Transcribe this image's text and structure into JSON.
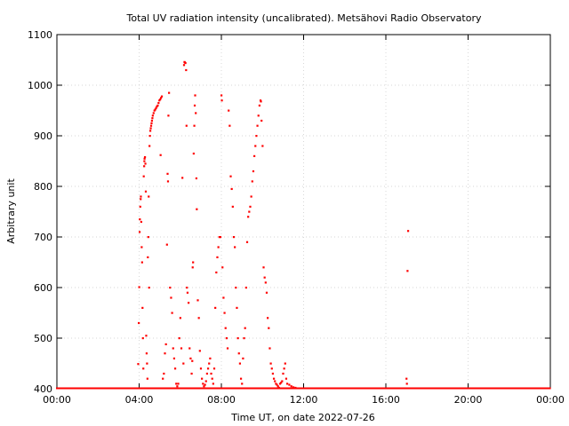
{
  "chart_data": {
    "type": "scatter",
    "title": "Total UV radiation intensity (uncalibrated). Metsähovi Radio Observatory",
    "xlabel": "Time UT, on date 2022-07-26",
    "ylabel": "Arbitrary unit",
    "xlim": [
      "00:00",
      "24:00"
    ],
    "ylim": [
      400,
      1100
    ],
    "x_ticks": [
      "00:00",
      "04:00",
      "08:00",
      "12:00",
      "16:00",
      "20:00",
      "00:00"
    ],
    "y_ticks": [
      400,
      500,
      600,
      700,
      800,
      900,
      1000,
      1100
    ],
    "grid": true,
    "series_color": "#ff0000",
    "baseline_value": 400,
    "series": [
      {
        "x_unit": "hours UT",
        "points": [
          [
            3.95,
            449
          ],
          [
            3.98,
            530
          ],
          [
            4.0,
            601
          ],
          [
            4.02,
            710
          ],
          [
            4.03,
            735
          ],
          [
            4.05,
            760
          ],
          [
            4.07,
            775
          ],
          [
            4.08,
            780
          ],
          [
            4.1,
            730
          ],
          [
            4.12,
            680
          ],
          [
            4.14,
            650
          ],
          [
            4.16,
            560
          ],
          [
            4.18,
            500
          ],
          [
            4.2,
            440
          ],
          [
            4.22,
            820
          ],
          [
            4.24,
            840
          ],
          [
            4.25,
            850
          ],
          [
            4.26,
            855
          ],
          [
            4.28,
            858
          ],
          [
            4.3,
            845
          ],
          [
            4.32,
            790
          ],
          [
            4.34,
            505
          ],
          [
            4.36,
            470
          ],
          [
            4.38,
            450
          ],
          [
            4.4,
            420
          ],
          [
            4.42,
            660
          ],
          [
            4.44,
            700
          ],
          [
            4.46,
            780
          ],
          [
            4.48,
            600
          ],
          [
            4.5,
            880
          ],
          [
            4.52,
            900
          ],
          [
            4.54,
            910
          ],
          [
            4.56,
            915
          ],
          [
            4.58,
            920
          ],
          [
            4.6,
            925
          ],
          [
            4.62,
            930
          ],
          [
            4.64,
            935
          ],
          [
            4.66,
            940
          ],
          [
            4.7,
            945
          ],
          [
            4.74,
            950
          ],
          [
            4.78,
            952
          ],
          [
            4.82,
            955
          ],
          [
            4.86,
            958
          ],
          [
            4.9,
            960
          ],
          [
            4.94,
            965
          ],
          [
            4.98,
            970
          ],
          [
            5.02,
            972
          ],
          [
            5.06,
            975
          ],
          [
            5.1,
            978
          ],
          [
            5.04,
            862
          ],
          [
            5.15,
            420
          ],
          [
            5.2,
            430
          ],
          [
            5.25,
            470
          ],
          [
            5.3,
            488
          ],
          [
            5.35,
            685
          ],
          [
            5.38,
            825
          ],
          [
            5.4,
            810
          ],
          [
            5.42,
            940
          ],
          [
            5.45,
            985
          ],
          [
            5.5,
            600
          ],
          [
            5.55,
            580
          ],
          [
            5.6,
            550
          ],
          [
            5.65,
            480
          ],
          [
            5.7,
            460
          ],
          [
            5.75,
            440
          ],
          [
            5.8,
            410
          ],
          [
            5.85,
            405
          ],
          [
            5.9,
            410
          ],
          [
            5.95,
            500
          ],
          [
            6.0,
            540
          ],
          [
            6.05,
            480
          ],
          [
            6.1,
            817
          ],
          [
            6.15,
            450
          ],
          [
            6.18,
            1040
          ],
          [
            6.2,
            1046
          ],
          [
            6.22,
            1045
          ],
          [
            6.25,
            1044
          ],
          [
            6.28,
            1030
          ],
          [
            6.3,
            920
          ],
          [
            6.32,
            600
          ],
          [
            6.35,
            590
          ],
          [
            6.4,
            570
          ],
          [
            6.45,
            480
          ],
          [
            6.5,
            460
          ],
          [
            6.55,
            430
          ],
          [
            6.58,
            455
          ],
          [
            6.6,
            640
          ],
          [
            6.62,
            650
          ],
          [
            6.65,
            865
          ],
          [
            6.68,
            920
          ],
          [
            6.7,
            960
          ],
          [
            6.72,
            980
          ],
          [
            6.75,
            945
          ],
          [
            6.78,
            816
          ],
          [
            6.8,
            755
          ],
          [
            6.85,
            575
          ],
          [
            6.9,
            540
          ],
          [
            6.95,
            475
          ],
          [
            7.0,
            440
          ],
          [
            7.05,
            420
          ],
          [
            7.1,
            410
          ],
          [
            7.15,
            405
          ],
          [
            7.2,
            408
          ],
          [
            7.25,
            415
          ],
          [
            7.3,
            430
          ],
          [
            7.35,
            440
          ],
          [
            7.4,
            450
          ],
          [
            7.45,
            460
          ],
          [
            7.5,
            430
          ],
          [
            7.55,
            420
          ],
          [
            7.6,
            410
          ],
          [
            7.65,
            440
          ],
          [
            7.7,
            560
          ],
          [
            7.75,
            630
          ],
          [
            7.8,
            660
          ],
          [
            7.85,
            680
          ],
          [
            7.9,
            700
          ],
          [
            7.95,
            700
          ],
          [
            8.0,
            980
          ],
          [
            8.02,
            970
          ],
          [
            8.05,
            640
          ],
          [
            8.1,
            580
          ],
          [
            8.15,
            550
          ],
          [
            8.2,
            520
          ],
          [
            8.25,
            500
          ],
          [
            8.3,
            480
          ],
          [
            8.35,
            950
          ],
          [
            8.4,
            920
          ],
          [
            8.45,
            820
          ],
          [
            8.5,
            795
          ],
          [
            8.55,
            760
          ],
          [
            8.6,
            700
          ],
          [
            8.65,
            680
          ],
          [
            8.7,
            600
          ],
          [
            8.75,
            560
          ],
          [
            8.8,
            500
          ],
          [
            8.85,
            470
          ],
          [
            8.9,
            450
          ],
          [
            8.95,
            420
          ],
          [
            9.0,
            410
          ],
          [
            9.05,
            460
          ],
          [
            9.1,
            500
          ],
          [
            9.15,
            520
          ],
          [
            9.2,
            600
          ],
          [
            9.25,
            690
          ],
          [
            9.3,
            740
          ],
          [
            9.35,
            750
          ],
          [
            9.4,
            760
          ],
          [
            9.45,
            780
          ],
          [
            9.5,
            810
          ],
          [
            9.55,
            830
          ],
          [
            9.6,
            860
          ],
          [
            9.65,
            880
          ],
          [
            9.7,
            900
          ],
          [
            9.75,
            920
          ],
          [
            9.8,
            940
          ],
          [
            9.85,
            960
          ],
          [
            9.9,
            970
          ],
          [
            9.92,
            968
          ],
          [
            9.95,
            930
          ],
          [
            10.0,
            880
          ],
          [
            10.05,
            640
          ],
          [
            10.1,
            620
          ],
          [
            10.15,
            610
          ],
          [
            10.2,
            590
          ],
          [
            10.25,
            540
          ],
          [
            10.3,
            520
          ],
          [
            10.35,
            480
          ],
          [
            10.4,
            450
          ],
          [
            10.45,
            440
          ],
          [
            10.5,
            430
          ],
          [
            10.55,
            420
          ],
          [
            10.6,
            415
          ],
          [
            10.65,
            410
          ],
          [
            10.7,
            408
          ],
          [
            10.75,
            405
          ],
          [
            10.8,
            402
          ],
          [
            10.85,
            410
          ],
          [
            10.9,
            412
          ],
          [
            10.95,
            415
          ],
          [
            11.0,
            430
          ],
          [
            11.05,
            440
          ],
          [
            11.1,
            450
          ],
          [
            11.15,
            420
          ],
          [
            11.2,
            410
          ],
          [
            11.3,
            408
          ],
          [
            11.4,
            405
          ],
          [
            11.5,
            403
          ],
          [
            11.6,
            402
          ],
          [
            17.0,
            420
          ],
          [
            17.02,
            410
          ],
          [
            17.05,
            633
          ],
          [
            17.08,
            712
          ]
        ]
      }
    ]
  }
}
